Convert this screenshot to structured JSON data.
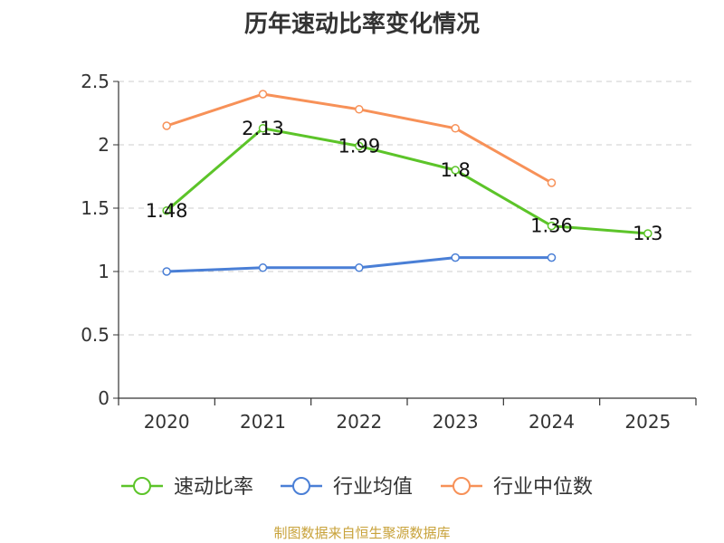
{
  "chart_data": {
    "type": "line",
    "title": "历年速动比率变化情况",
    "categories": [
      "2020",
      "2021",
      "2022",
      "2023",
      "2024",
      "2025"
    ],
    "ylim": [
      0,
      2.5
    ],
    "yticks": [
      "0",
      "0.5",
      "1",
      "1.5",
      "2",
      "2.5"
    ],
    "xlabel": "",
    "ylabel": "",
    "grid": true,
    "legend_position": "bottom",
    "series": [
      {
        "name": "速动比率",
        "color": "#5cc429",
        "values": [
          1.48,
          2.13,
          1.99,
          1.8,
          1.36,
          1.3
        ],
        "labels": [
          "1.48",
          "2.13",
          "1.99",
          "1.8",
          "1.36",
          "1.3"
        ]
      },
      {
        "name": "行业均值",
        "color": "#4a7fd6",
        "values": [
          1.0,
          1.03,
          1.03,
          1.11,
          1.11,
          null
        ]
      },
      {
        "name": "行业中位数",
        "color": "#f79158",
        "values": [
          2.15,
          2.4,
          2.28,
          2.13,
          1.7,
          null
        ]
      }
    ]
  },
  "footer": {
    "source": "制图数据来自恒生聚源数据库"
  }
}
